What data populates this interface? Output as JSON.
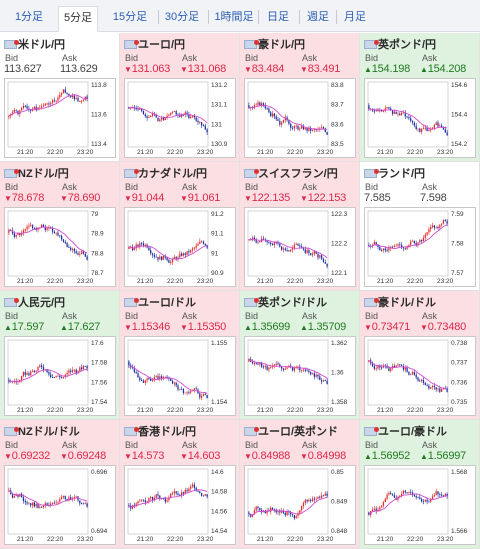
{
  "tabs": [
    "1分足",
    "5分足",
    "15分足",
    "30分足",
    "1時間足",
    "日足",
    "週足",
    "月足"
  ],
  "active_tab": 1,
  "bid_label": "Bid",
  "ask_label": "Ask",
  "up_color": "#1f7a1f",
  "down_color": "#e0284a",
  "candle_up_color": "#e22b2b",
  "candle_down_color": "#1b2f9e",
  "ma_color": "#d24bd2",
  "pairs": [
    {
      "name": "米ドル/円",
      "dir": "flat",
      "bid": "113.627",
      "ask": "113.629",
      "yticks": [
        "113.8",
        "113.6",
        "113.4"
      ],
      "xticks": [
        "21:20",
        "22:20",
        "23:20"
      ],
      "trend": 0.1,
      "seed": 1
    },
    {
      "name": "ユーロ/円",
      "dir": "down",
      "bid": "131.063",
      "ask": "131.068",
      "yticks": [
        "131.2",
        "131.1",
        "131",
        "130.9"
      ],
      "xticks": [
        "21:20",
        "22:20",
        "23:20"
      ],
      "trend": -0.4,
      "seed": 2
    },
    {
      "name": "豪ドル/円",
      "dir": "down",
      "bid": "83.484",
      "ask": "83.491",
      "yticks": [
        "83.8",
        "83.7",
        "83.6",
        "83.5"
      ],
      "xticks": [
        "21:20",
        "22:20",
        "23:20"
      ],
      "trend": -0.5,
      "seed": 3
    },
    {
      "name": "英ポンド/円",
      "dir": "up",
      "bid": "154.198",
      "ask": "154.208",
      "yticks": [
        "154.6",
        "154.4",
        "154.2"
      ],
      "xticks": [
        "21:20",
        "22:20",
        "23:20"
      ],
      "trend": -0.5,
      "seed": 4
    },
    {
      "name": "NZドル/円",
      "dir": "down",
      "bid": "78.678",
      "ask": "78.690",
      "yticks": [
        "79",
        "78.9",
        "78.8",
        "78.7"
      ],
      "xticks": [
        "21:20",
        "22:20",
        "23:20"
      ],
      "trend": -0.6,
      "seed": 5
    },
    {
      "name": "カナダドル/円",
      "dir": "down",
      "bid": "91.044",
      "ask": "91.061",
      "yticks": [
        "91.2",
        "91.1",
        "91",
        "90.9"
      ],
      "xticks": [
        "21:20",
        "22:20",
        "23:20"
      ],
      "trend": 0.3,
      "seed": 6
    },
    {
      "name": "スイスフラン/円",
      "dir": "down",
      "bid": "122.135",
      "ask": "122.153",
      "yticks": [
        "122.3",
        "122.2",
        "122.1"
      ],
      "xticks": [
        "21:20",
        "22:20",
        "23:20"
      ],
      "trend": -0.2,
      "seed": 7
    },
    {
      "name": "ランド/円",
      "dir": "flat",
      "bid": "7.585",
      "ask": "7.598",
      "yticks": [
        "7.59",
        "7.58",
        "7.57"
      ],
      "xticks": [
        "21:20",
        "22:20",
        "23:20"
      ],
      "trend": 0.1,
      "seed": 8
    },
    {
      "name": "人民元/円",
      "dir": "up",
      "bid": "17.597",
      "ask": "17.627",
      "yticks": [
        "17.6",
        "17.58",
        "17.56",
        "17.54"
      ],
      "xticks": [
        "21:20",
        "22:20",
        "23:20"
      ],
      "trend": 0.4,
      "seed": 9
    },
    {
      "name": "ユーロ/ドル",
      "dir": "down",
      "bid": "1.15346",
      "ask": "1.15350",
      "yticks": [
        "1.155",
        "1.154"
      ],
      "xticks": [
        "21:20",
        "22:20",
        "23:20"
      ],
      "trend": -0.6,
      "seed": 10
    },
    {
      "name": "英ポンド/ドル",
      "dir": "up",
      "bid": "1.35699",
      "ask": "1.35709",
      "yticks": [
        "1.362",
        "1.36",
        "1.358"
      ],
      "xticks": [
        "21:20",
        "22:20",
        "23:20"
      ],
      "trend": -0.6,
      "seed": 11
    },
    {
      "name": "豪ドル/ドル",
      "dir": "down",
      "bid": "0.73471",
      "ask": "0.73480",
      "yticks": [
        "0.738",
        "0.737",
        "0.736",
        "0.735"
      ],
      "xticks": [
        "21:20",
        "22:20",
        "23:20"
      ],
      "trend": -0.6,
      "seed": 12
    },
    {
      "name": "NZドル/ドル",
      "dir": "down",
      "bid": "0.69232",
      "ask": "0.69248",
      "yticks": [
        "0.696",
        "0.694"
      ],
      "xticks": [
        "21:20",
        "22:20",
        "23:20"
      ],
      "trend": -0.6,
      "seed": 13
    },
    {
      "name": "香港ドル/円",
      "dir": "down",
      "bid": "14.573",
      "ask": "14.603",
      "yticks": [
        "14.6",
        "14.58",
        "14.56",
        "14.54"
      ],
      "xticks": [
        "21:20",
        "22:20",
        "23:20"
      ],
      "trend": 0.2,
      "seed": 14
    },
    {
      "name": "ユーロ/英ポンド",
      "dir": "down",
      "bid": "0.84988",
      "ask": "0.84998",
      "yticks": [
        "0.85",
        "0.849",
        "0.848"
      ],
      "xticks": [
        "21:20",
        "22:20",
        "23:20"
      ],
      "trend": 0.6,
      "seed": 15
    },
    {
      "name": "ユーロ/豪ドル",
      "dir": "up",
      "bid": "1.56952",
      "ask": "1.56997",
      "yticks": [
        "1.568",
        "1.566"
      ],
      "xticks": [
        "21:20",
        "22:20",
        "23:20"
      ],
      "trend": 0.6,
      "seed": 16
    }
  ]
}
